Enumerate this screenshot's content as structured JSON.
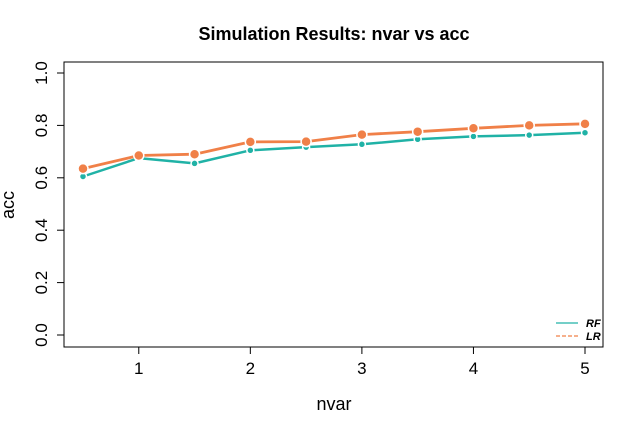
{
  "chart_data": {
    "type": "line",
    "title": "Simulation Results: nvar vs acc",
    "xlabel": "nvar",
    "ylabel": "acc",
    "xlim": [
      0.4,
      5.1
    ],
    "ylim": [
      0.0,
      1.0
    ],
    "x": [
      0.5,
      1.0,
      1.5,
      2.0,
      2.5,
      3.0,
      3.5,
      4.0,
      4.5,
      5.0
    ],
    "x_ticks": [
      "1",
      "2",
      "3",
      "4",
      "5"
    ],
    "x_tick_values": [
      1,
      2,
      3,
      4,
      5
    ],
    "y_ticks": [
      "0.0",
      "0.2",
      "0.4",
      "0.6",
      "0.8",
      "1.0"
    ],
    "y_tick_values": [
      0.0,
      0.2,
      0.4,
      0.6,
      0.8,
      1.0
    ],
    "grid": false,
    "legend_position": "bottom-right",
    "series": [
      {
        "name": "RF",
        "color": "#20b2a6",
        "values": [
          0.605,
          0.675,
          0.655,
          0.705,
          0.717,
          0.728,
          0.747,
          0.758,
          0.763,
          0.772
        ]
      },
      {
        "name": "LR",
        "color": "#f08048",
        "values": [
          0.635,
          0.685,
          0.69,
          0.737,
          0.738,
          0.765,
          0.776,
          0.789,
          0.8,
          0.806
        ]
      }
    ]
  }
}
